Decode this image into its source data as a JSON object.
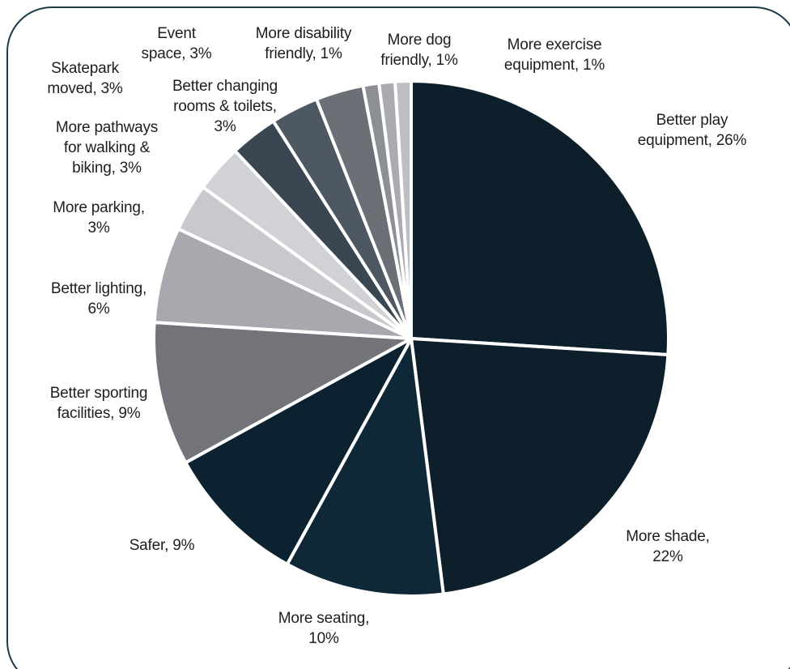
{
  "chart_data": {
    "type": "pie",
    "title": "",
    "slices": [
      {
        "label": "Better play\nequipment, 26%",
        "value": 26,
        "color": "#0d1f2b"
      },
      {
        "label": "More shade,\n22%",
        "value": 22,
        "color": "#0d1f2b"
      },
      {
        "label": "More seating,\n10%",
        "value": 10,
        "color": "#0e2838"
      },
      {
        "label": "Safer, 9%",
        "value": 9,
        "color": "#0c2231"
      },
      {
        "label": "Better sporting\nfacilities, 9%",
        "value": 9,
        "color": "#727479"
      },
      {
        "label": "Better lighting,\n6%",
        "value": 6,
        "color": "#a7a9ae"
      },
      {
        "label": "More parking,\n3%",
        "value": 3,
        "color": "#c8c9cd"
      },
      {
        "label": "More pathways\nfor walking &\nbiking, 3%",
        "value": 3,
        "color": "#d0d2d5"
      },
      {
        "label": "Better changing\nrooms & toilets,\n3%",
        "value": 3,
        "color": "#3a4651"
      },
      {
        "label": "Skatepark\nmoved, 3%",
        "value": 3,
        "color": "#4e5862"
      },
      {
        "label": "Event\nspace, 3%",
        "value": 3,
        "color": "#6b7076"
      },
      {
        "label": "More disability\nfriendly, 1%",
        "value": 1,
        "color": "#8c8f94"
      },
      {
        "label": "More dog\nfriendly, 1%",
        "value": 1,
        "color": "#a9abb0"
      },
      {
        "label": "More exercise\nequipment, 1%",
        "value": 1,
        "color": "#bdbfc3"
      }
    ]
  }
}
